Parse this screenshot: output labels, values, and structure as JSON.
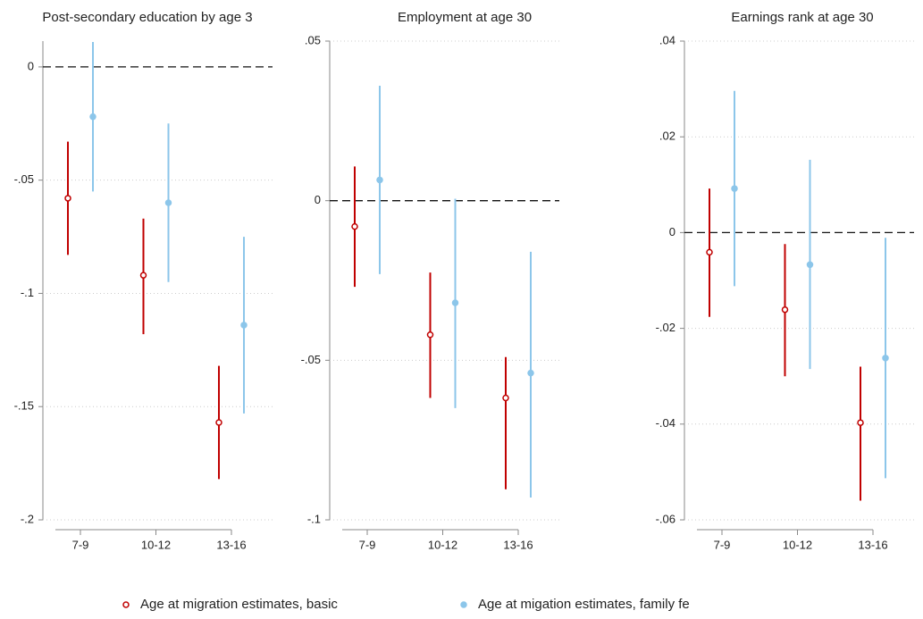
{
  "chart_data": [
    {
      "type": "errorbar",
      "title": "Post-secondary education by age 3",
      "categories": [
        "7-9",
        "10-12",
        "13-16"
      ],
      "ylim": [
        -0.2,
        0.0114
      ],
      "yticks": [
        {
          "value": 0,
          "label": "0"
        },
        {
          "value": -0.05,
          "label": "-.05"
        },
        {
          "value": -0.1,
          "label": "-.1"
        },
        {
          "value": -0.15,
          "label": "-.15"
        },
        {
          "value": -0.2,
          "label": "-.2"
        }
      ],
      "reference_line": 0,
      "grid": true,
      "series": [
        {
          "color": "#c00000",
          "marker": "open",
          "values": [
            -0.058,
            -0.092,
            -0.157
          ],
          "lower": [
            -0.083,
            -0.118,
            -0.182
          ],
          "upper": [
            -0.033,
            -0.067,
            -0.132
          ]
        },
        {
          "color": "#8cc6ea",
          "marker": "filled",
          "values": [
            -0.022,
            -0.06,
            -0.114
          ],
          "lower": [
            -0.055,
            -0.095,
            -0.153
          ],
          "upper": [
            0.011,
            -0.025,
            -0.075
          ]
        }
      ]
    },
    {
      "type": "errorbar",
      "title": "Employment at age 30",
      "categories": [
        "7-9",
        "10-12",
        "13-16"
      ],
      "ylim": [
        -0.1,
        0.05
      ],
      "yticks": [
        {
          "value": 0.05,
          "label": ".05"
        },
        0,
        {
          "value": -0.05,
          "label": "-.05"
        },
        {
          "value": -0.1,
          "label": "-.1"
        }
      ],
      "reference_line": 0,
      "grid": true,
      "series": [
        {
          "color": "#c00000",
          "marker": "open",
          "values": [
            -0.0081,
            -0.042,
            -0.0618
          ],
          "lower": [
            -0.027,
            -0.0618,
            -0.0904
          ],
          "upper": [
            0.0107,
            -0.0225,
            -0.049
          ]
        },
        {
          "color": "#8cc6ea",
          "marker": "filled",
          "values": [
            0.0065,
            -0.032,
            -0.054
          ],
          "lower": [
            -0.023,
            -0.065,
            -0.093
          ],
          "upper": [
            0.036,
            0.0006,
            -0.016
          ]
        }
      ]
    },
    {
      "type": "errorbar",
      "title": "Earnings rank at age 30",
      "categories": [
        "7-9",
        "10-12",
        "13-16"
      ],
      "ylim": [
        -0.06,
        0.04
      ],
      "yticks": [
        {
          "value": 0.04,
          "label": ".04"
        },
        {
          "value": 0.02,
          "label": ".02"
        },
        0,
        {
          "value": -0.02,
          "label": "-.02"
        },
        {
          "value": -0.04,
          "label": "-.04"
        },
        {
          "value": -0.06,
          "label": "-.06"
        }
      ],
      "reference_line": 0,
      "grid": true,
      "series": [
        {
          "color": "#c00000",
          "marker": "open",
          "values": [
            -0.0041,
            -0.0161,
            -0.0397
          ],
          "lower": [
            -0.0176,
            -0.03,
            -0.056
          ],
          "upper": [
            0.0092,
            -0.0024,
            -0.028
          ]
        },
        {
          "color": "#8cc6ea",
          "marker": "filled",
          "values": [
            0.0092,
            -0.0067,
            -0.0262
          ],
          "lower": [
            -0.0112,
            -0.0285,
            -0.0513
          ],
          "upper": [
            0.0296,
            0.0152,
            -0.0011
          ]
        }
      ]
    }
  ],
  "legend": {
    "position": "bottom",
    "items": [
      {
        "name": "Age at migration estimates, basic",
        "color": "#c00000",
        "marker": "open"
      },
      {
        "name": "Age at migation estimates, family fe",
        "color": "#8cc6ea",
        "marker": "filled"
      }
    ]
  }
}
